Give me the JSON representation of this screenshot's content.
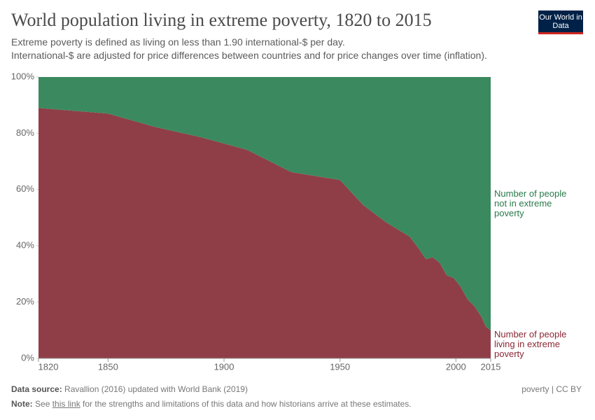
{
  "chart_data": {
    "type": "area",
    "stacked": true,
    "title": "World population living in extreme poverty, 1820 to 2015",
    "subtitle": [
      "Extreme poverty is defined as living on less than 1.90 international-$ per day.",
      "International-$ are adjusted for price differences between countries and for price changes over time (inflation)."
    ],
    "logo": "Our World in Data",
    "x": [
      1820,
      1850,
      1870,
      1890,
      1910,
      1929,
      1950,
      1960,
      1970,
      1980,
      1984,
      1987,
      1990,
      1993,
      1996,
      1999,
      2002,
      2005,
      2008,
      2010,
      2011,
      2012,
      2013,
      2015
    ],
    "series": [
      {
        "name": "Number of people living in extreme poverty",
        "color": "#8f3e47",
        "label_color": "#8a2734",
        "values": [
          89,
          87,
          82.3,
          78.6,
          74.1,
          66.2,
          63.4,
          54.5,
          48.3,
          43.3,
          39,
          35.3,
          35.9,
          34,
          29.5,
          28.6,
          25.5,
          21,
          18.5,
          16,
          14.8,
          12.9,
          11.2,
          10
        ]
      },
      {
        "name": "Number of people not in extreme poverty",
        "color": "#3b8a5f",
        "label_color": "#2a7a4a",
        "values": [
          11,
          13,
          17.7,
          21.4,
          25.9,
          33.8,
          36.6,
          45.5,
          51.7,
          56.7,
          61,
          64.7,
          64.1,
          66,
          70.5,
          71.4,
          74.5,
          79,
          81.5,
          84,
          85.2,
          87.1,
          88.8,
          90
        ]
      }
    ],
    "xlim": [
      1820,
      2015
    ],
    "xticks": [
      1820,
      1850,
      1900,
      1950,
      2000,
      2015
    ],
    "ylim": [
      0,
      100
    ],
    "yticks": [
      {
        "value": 0,
        "label": "0%"
      },
      {
        "value": 20,
        "label": "20%"
      },
      {
        "value": 40,
        "label": "40%"
      },
      {
        "value": 60,
        "label": "60%"
      },
      {
        "value": 80,
        "label": "80%"
      },
      {
        "value": 100,
        "label": "100%"
      }
    ],
    "source_label": "Data source:",
    "source": "Ravallion (2016) updated with World Bank (2019)",
    "license": "poverty | CC BY",
    "note_label": "Note:",
    "note": [
      "See ",
      "this link",
      " for the strengths and limitations of this data and how historians arrive at these estimates."
    ]
  }
}
